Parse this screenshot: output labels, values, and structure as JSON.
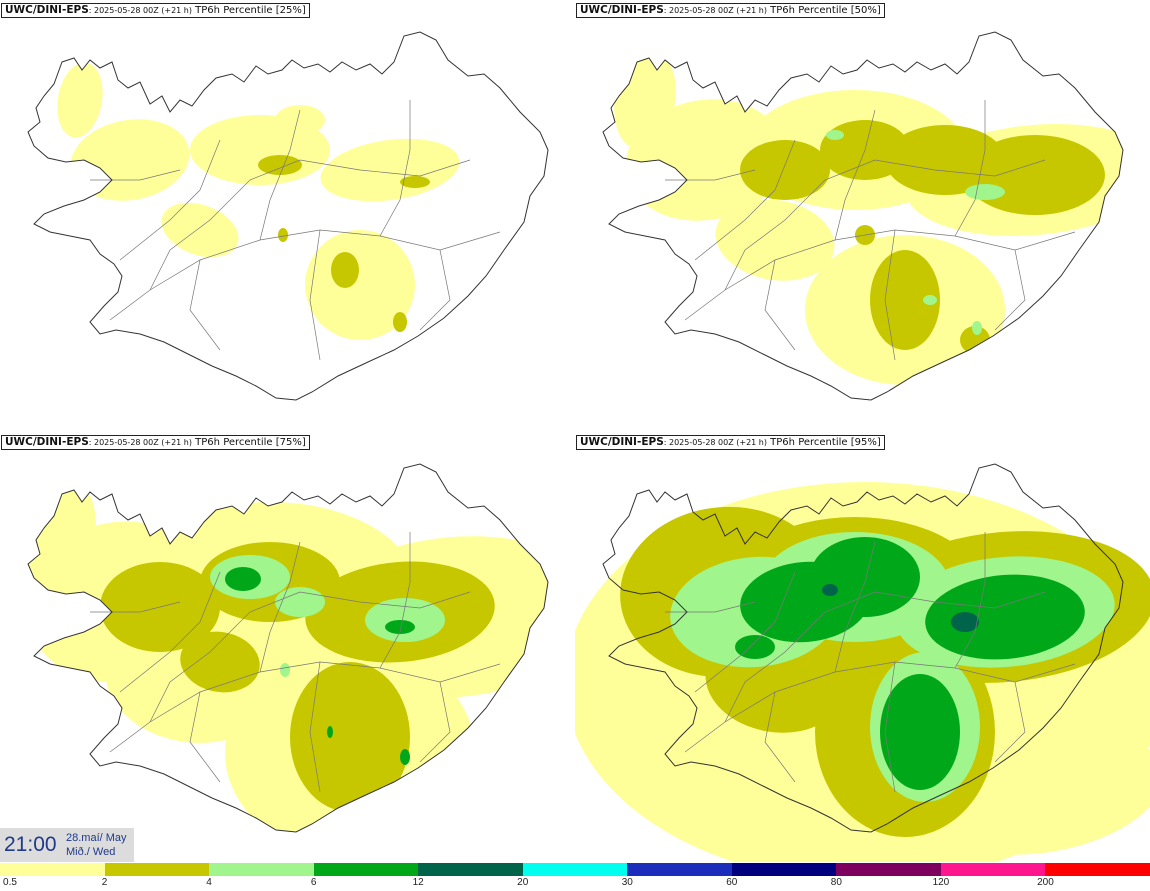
{
  "panels": [
    {
      "model": "UWC/DINI-EPS",
      "run": ": 2025-05-28 00Z (+21 h)",
      "field": "TP6h Percentile [25%]"
    },
    {
      "model": "UWC/DINI-EPS",
      "run": ": 2025-05-28 00Z (+21 h)",
      "field": "TP6h Percentile [50%]"
    },
    {
      "model": "UWC/DINI-EPS",
      "run": ": 2025-05-28 00Z (+21 h)",
      "field": "TP6h Percentile [75%]"
    },
    {
      "model": "UWC/DINI-EPS",
      "run": ": 2025-05-28 00Z (+21 h)",
      "field": "TP6h Percentile [95%]"
    }
  ],
  "valid_time": {
    "time": "21:00",
    "date_line1": "28.maí/ May",
    "date_line2": "Mið./ Wed"
  },
  "legend": {
    "labels": [
      "0.5",
      "2",
      "4",
      "6",
      "12",
      "20",
      "30",
      "60",
      "80",
      "120",
      "200"
    ],
    "colors": [
      "#ffff9a",
      "#c7c700",
      "#a0f58c",
      "#00a819",
      "#00644b",
      "#00ffef",
      "#1c2dbb",
      "#00007e",
      "#7e005e",
      "#ff168e",
      "#ff0000"
    ]
  },
  "map_colors": {
    "land_bg": "#ffffff",
    "coast": "#333333",
    "roads": "#777777"
  }
}
